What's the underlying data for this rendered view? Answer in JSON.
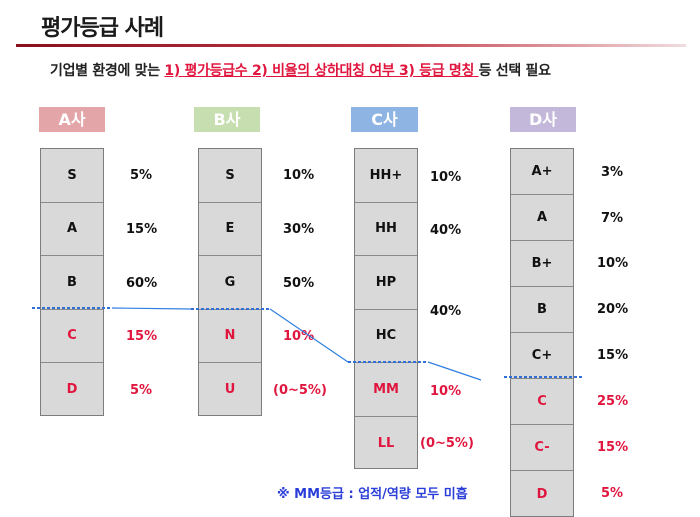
{
  "title": "평가등급 사례",
  "subtitle": {
    "prefix": "기업별 환경에 맞는 ",
    "highlight": "1) 평가등급수 2) 비율의 상하대칭 여부 3) 등급 명칭 ",
    "suffix": "등 선택 필요"
  },
  "colors": {
    "accent_red": "#e0163e",
    "note_blue": "#2b3fd8",
    "line_blue": "#2f7fe0"
  },
  "companies": [
    {
      "header": "A사",
      "header_color": "#e3a5a8",
      "grades": [
        {
          "label": "S",
          "pct": "5%",
          "red": false
        },
        {
          "label": "A",
          "pct": "15%",
          "red": false
        },
        {
          "label": "B",
          "pct": "60%",
          "red": false
        },
        {
          "label": "C",
          "pct": "15%",
          "red": true
        },
        {
          "label": "D",
          "pct": "5%",
          "red": true
        }
      ]
    },
    {
      "header": "B사",
      "header_color": "#c6deb0",
      "grades": [
        {
          "label": "S",
          "pct": "10%",
          "red": false
        },
        {
          "label": "E",
          "pct": "30%",
          "red": false
        },
        {
          "label": "G",
          "pct": "50%",
          "red": false
        },
        {
          "label": "N",
          "pct": "10%",
          "red": true
        },
        {
          "label": "U",
          "pct": "(0~5%)",
          "red": true
        }
      ]
    },
    {
      "header": "C사",
      "header_color": "#8eb4e3",
      "grades": [
        {
          "label": "HH+",
          "pct": "10%",
          "red": false
        },
        {
          "label": "HH",
          "pct": "40%",
          "red": false
        },
        {
          "label": "HP",
          "pct": "",
          "red": false
        },
        {
          "label": "HC",
          "pct": "",
          "red": false
        },
        {
          "label": "MM",
          "pct": "10%",
          "red": true
        },
        {
          "label": "LL",
          "pct": "(0~5%)",
          "red": true
        }
      ],
      "merged_pct": "40%"
    },
    {
      "header": "D사",
      "header_color": "#c4b8da",
      "grades": [
        {
          "label": "A+",
          "pct": "3%",
          "red": false
        },
        {
          "label": "A",
          "pct": "7%",
          "red": false
        },
        {
          "label": "B+",
          "pct": "10%",
          "red": false
        },
        {
          "label": "B",
          "pct": "20%",
          "red": false
        },
        {
          "label": "C+",
          "pct": "15%",
          "red": false
        },
        {
          "label": "C",
          "pct": "25%",
          "red": true
        },
        {
          "label": "C-",
          "pct": "15%",
          "red": true
        },
        {
          "label": "D",
          "pct": "5%",
          "red": true
        }
      ]
    }
  ],
  "note": "※ MM등급 : 업적/역량 모두 미흡"
}
